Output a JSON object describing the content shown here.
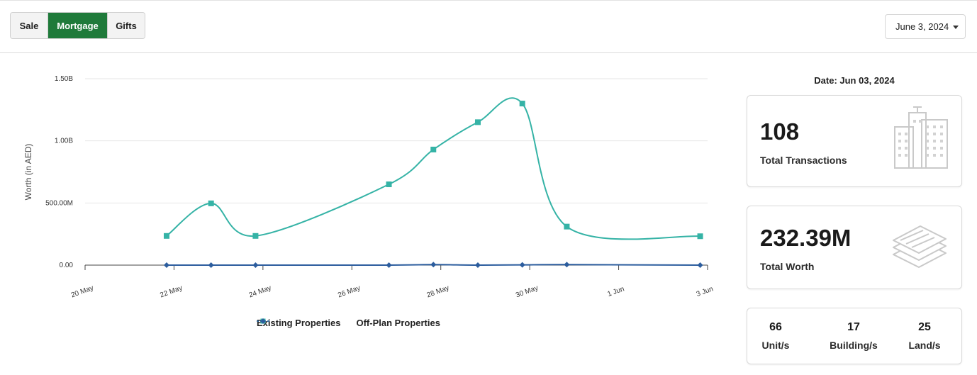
{
  "tabs": [
    {
      "label": "Sale",
      "active": false
    },
    {
      "label": "Mortgage",
      "active": true
    },
    {
      "label": "Gifts",
      "active": false
    }
  ],
  "date_select": {
    "value": "June 3, 2024"
  },
  "date_heading": "Date: Jun 03, 2024",
  "cards": {
    "transactions": {
      "value": "108",
      "label": "Total Transactions",
      "icon": "buildings-icon"
    },
    "worth": {
      "value": "232.39M",
      "label": "Total Worth",
      "icon": "money-stack-icon"
    }
  },
  "breakdown": [
    {
      "value": "66",
      "label": "Unit/s"
    },
    {
      "value": "17",
      "label": "Building/s"
    },
    {
      "value": "25",
      "label": "Land/s"
    }
  ],
  "colors": {
    "accent": "#1f7a3a",
    "existing": "#35b3a6",
    "offplan": "#2c5d9e"
  },
  "chart_data": {
    "type": "line",
    "ylabel": "Worth (in AED)",
    "y_ticks": [
      "0.00",
      "500.00M",
      "1.00B",
      "1.50B"
    ],
    "y_tick_values": [
      0,
      500000000,
      1000000000,
      1500000000
    ],
    "ylim": [
      0,
      1500000000
    ],
    "x_ticks": [
      "20 May",
      "22 May",
      "24 May",
      "26 May",
      "28 May",
      "30 May",
      "1 Jun",
      "3 Jun"
    ],
    "xlim": [
      "2024-05-20",
      "2024-06-03"
    ],
    "series": [
      {
        "name": "Existing Properties",
        "marker": "square",
        "points": [
          {
            "x": "2024-05-21T20:00",
            "y": 235000000
          },
          {
            "x": "2024-05-22T20:00",
            "y": 497000000
          },
          {
            "x": "2024-05-23T20:00",
            "y": 235000000
          },
          {
            "x": "2024-05-26T20:00",
            "y": 650000000
          },
          {
            "x": "2024-05-27T20:00",
            "y": 930000000
          },
          {
            "x": "2024-05-28T20:00",
            "y": 1150000000
          },
          {
            "x": "2024-05-29T20:00",
            "y": 1300000000
          },
          {
            "x": "2024-05-30T20:00",
            "y": 310000000
          },
          {
            "x": "2024-06-02T20:00",
            "y": 232390000
          }
        ]
      },
      {
        "name": "Off-Plan Properties",
        "marker": "diamond",
        "points": [
          {
            "x": "2024-05-21T20:00",
            "y": 0
          },
          {
            "x": "2024-05-22T20:00",
            "y": 0
          },
          {
            "x": "2024-05-23T20:00",
            "y": 0
          },
          {
            "x": "2024-05-26T20:00",
            "y": 0
          },
          {
            "x": "2024-05-27T20:00",
            "y": 4000000
          },
          {
            "x": "2024-05-28T20:00",
            "y": 0
          },
          {
            "x": "2024-05-29T20:00",
            "y": 2000000
          },
          {
            "x": "2024-05-30T20:00",
            "y": 4000000
          },
          {
            "x": "2024-06-02T20:00",
            "y": 0
          }
        ]
      }
    ]
  }
}
